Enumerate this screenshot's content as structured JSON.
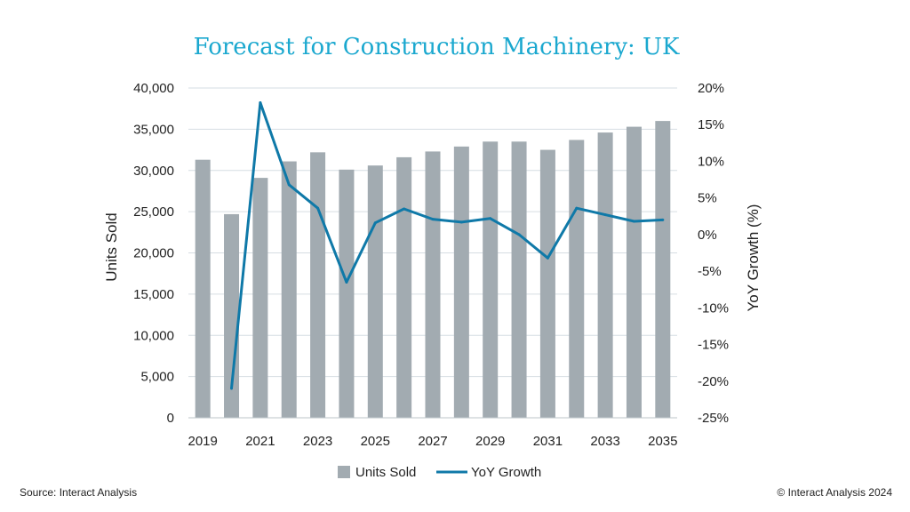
{
  "chart_data": {
    "type": "bar",
    "title": "Forecast for Construction Machinery: UK",
    "x": [
      2019,
      2020,
      2021,
      2022,
      2023,
      2024,
      2025,
      2026,
      2027,
      2028,
      2029,
      2030,
      2031,
      2032,
      2033,
      2034,
      2035
    ],
    "x_tick_labels": [
      "2019",
      "2021",
      "2023",
      "2025",
      "2027",
      "2029",
      "2031",
      "2033",
      "2035"
    ],
    "ylabel": "Units Sold",
    "ylim": [
      0,
      40000
    ],
    "y_tick_labels": [
      "0",
      "5,000",
      "10,000",
      "15,000",
      "20,000",
      "25,000",
      "30,000",
      "35,000",
      "40,000"
    ],
    "y2label": "YoY Growth (%)",
    "y2lim": [
      -25,
      20
    ],
    "y2_tick_labels": [
      "-25%",
      "-20%",
      "-15%",
      "-10%",
      "-5%",
      "0%",
      "5%",
      "10%",
      "15%",
      "20%"
    ],
    "grid": true,
    "legend_position": "bottom",
    "series": [
      {
        "name": "Units Sold",
        "type": "bar",
        "axis": "left",
        "color": "#a2abb1",
        "values": [
          31300,
          24700,
          29100,
          31100,
          32200,
          30100,
          30600,
          31600,
          32300,
          32900,
          33500,
          33500,
          32500,
          33700,
          34600,
          35300,
          36000
        ]
      },
      {
        "name": "YoY Growth",
        "type": "line",
        "axis": "right",
        "color": "#0f79a8",
        "values": [
          null,
          -21.0,
          18.0,
          6.8,
          3.6,
          -6.5,
          1.6,
          3.5,
          2.1,
          1.7,
          2.2,
          0.0,
          -3.2,
          3.6,
          2.7,
          1.8,
          2.0
        ]
      }
    ]
  },
  "footer": {
    "source": "Source: Interact Analysis",
    "copyright": "© Interact Analysis 2024"
  }
}
